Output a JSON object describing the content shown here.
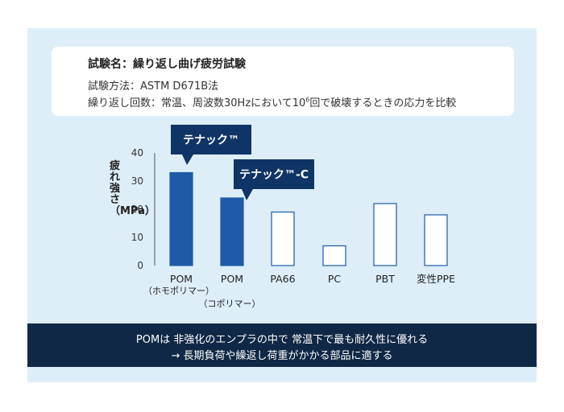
{
  "info": {
    "title": "試験名：繰り返し曲げ疲労試験",
    "method": "試験方法：ASTM D671B法",
    "count_before": "繰り返し回数：常温、周波数30Hzにおいて10",
    "count_sup": "6",
    "count_after": "回で破壊するときの応力を比較"
  },
  "chart_data": {
    "type": "bar",
    "categories": [
      "POM",
      "POM",
      "PA66",
      "PC",
      "PBT",
      "変性PPE"
    ],
    "sub_labels": [
      "（ホモポリマー）",
      "（コポリマー）",
      "",
      "",
      "",
      ""
    ],
    "values": [
      33,
      24,
      19,
      7,
      22,
      18
    ],
    "highlight": [
      true,
      true,
      false,
      false,
      false,
      false
    ],
    "ylabel": "疲れ強さ（MPa）",
    "ylim": [
      0,
      40
    ],
    "yticks": [
      0,
      10,
      20,
      30,
      40
    ],
    "callouts": [
      {
        "bar": 0,
        "text": "テナック™"
      },
      {
        "bar": 1,
        "text": "テナック™-C"
      }
    ],
    "colors": {
      "highlight": "#1e5aa8",
      "normal": "#ffffff",
      "border": "#1e5aa8",
      "callout": "#0f3566"
    }
  },
  "footer": {
    "line1": "POMは 非強化のエンプラの中で 常温下で最も耐久性に優れる",
    "line2": "→ 長期負荷や繰返し荷重がかかる部品に適する"
  }
}
